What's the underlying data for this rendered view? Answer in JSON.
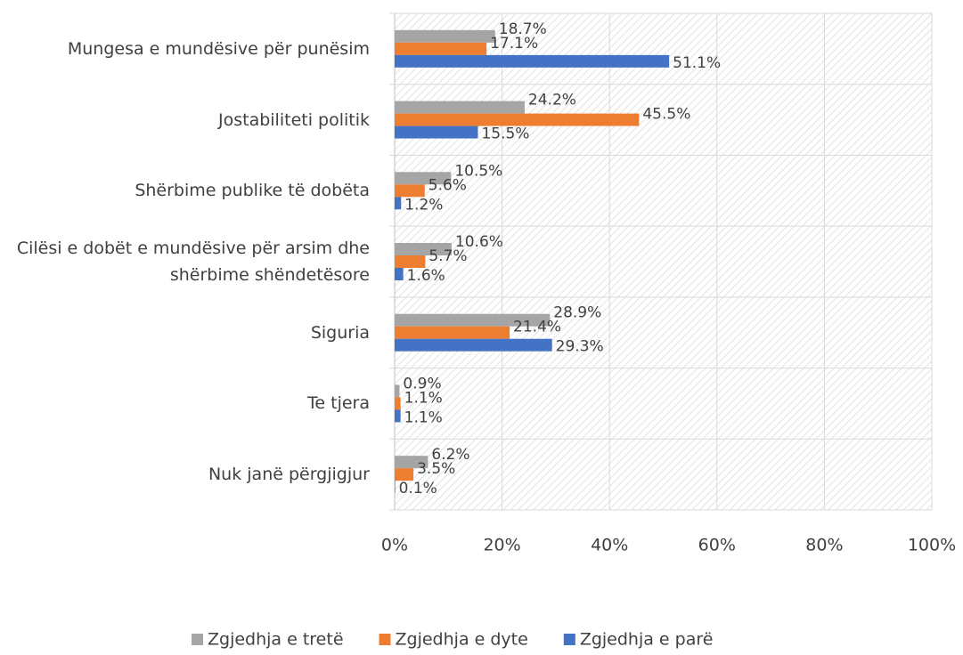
{
  "chart_data": {
    "type": "bar",
    "orientation": "horizontal",
    "categories": [
      "Mungesa e mundësive për punësim",
      "Jostabiliteti politik",
      "Shërbime publike të dobëta",
      "Cilësi e dobët e mundësive për arsim dhe shërbime shëndetësore",
      "Siguria",
      "Te tjera",
      "Nuk janë përgjigjur"
    ],
    "series": [
      {
        "name": "Zgjedhja e tretë",
        "color": "#a5a5a5",
        "values": [
          18.7,
          24.2,
          10.5,
          10.6,
          28.9,
          0.9,
          6.2
        ],
        "value_labels": [
          "18.7%",
          "24.2%",
          "10.5%",
          "10.6%",
          "28.9%",
          "0.9%",
          "6.2%"
        ]
      },
      {
        "name": "Zgjedhja e dyte",
        "color": "#ed7d31",
        "values": [
          17.1,
          45.5,
          5.6,
          5.7,
          21.4,
          1.1,
          3.5
        ],
        "value_labels": [
          "17.1%",
          "45.5%",
          "5.6%",
          "5.7%",
          "21.4%",
          "1.1%",
          "3.5%"
        ]
      },
      {
        "name": "Zgjedhja e parë",
        "color": "#4472c4",
        "values": [
          51.1,
          15.5,
          1.2,
          1.6,
          29.3,
          1.1,
          0.1
        ],
        "value_labels": [
          "51.1%",
          "15.5%",
          "1.2%",
          "1.6%",
          "29.3%",
          "1.1%",
          "0.1%"
        ]
      }
    ],
    "xlim": [
      0,
      100
    ],
    "xticks": [
      {
        "value": 0,
        "label": "0%"
      },
      {
        "value": 20,
        "label": "20%"
      },
      {
        "value": 40,
        "label": "40%"
      },
      {
        "value": 60,
        "label": "60%"
      },
      {
        "value": 80,
        "label": "80%"
      },
      {
        "value": 100,
        "label": "100%"
      }
    ],
    "grid": true,
    "legend": "bottom"
  }
}
